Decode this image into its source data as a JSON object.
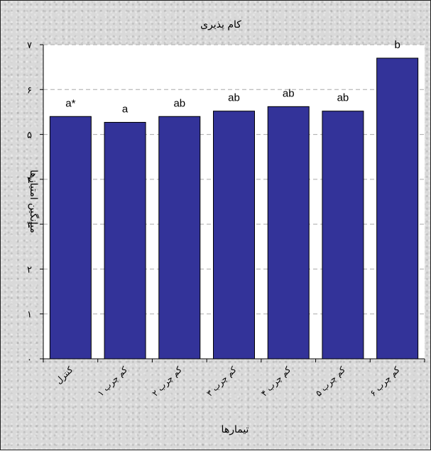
{
  "chart_data": {
    "type": "bar",
    "title": "کام پذیری",
    "xlabel": "تیمارها",
    "ylabel": "میانگین امتیازها",
    "ylim": [
      0,
      7
    ],
    "yticks": [
      "۰",
      "۱",
      "۲",
      "۳",
      "۴",
      "۵",
      "۶",
      "۷"
    ],
    "categories": [
      "کنترل",
      "کم چرب ۱",
      "کم چرب ۲",
      "کم چرب ۳",
      "کم چرب ۴",
      "کم چرب ۵",
      "کم چرب ۶"
    ],
    "values": [
      5.4,
      5.27,
      5.4,
      5.52,
      5.62,
      5.52,
      6.7
    ],
    "labels": [
      "a*",
      "a",
      "ab",
      "ab",
      "ab",
      "ab",
      "b"
    ],
    "grid": true,
    "colors": {
      "bar": "#333399",
      "bar_stroke": "#000000",
      "plot_bg": "#ffffff",
      "grid": "#aaaaaa"
    }
  }
}
